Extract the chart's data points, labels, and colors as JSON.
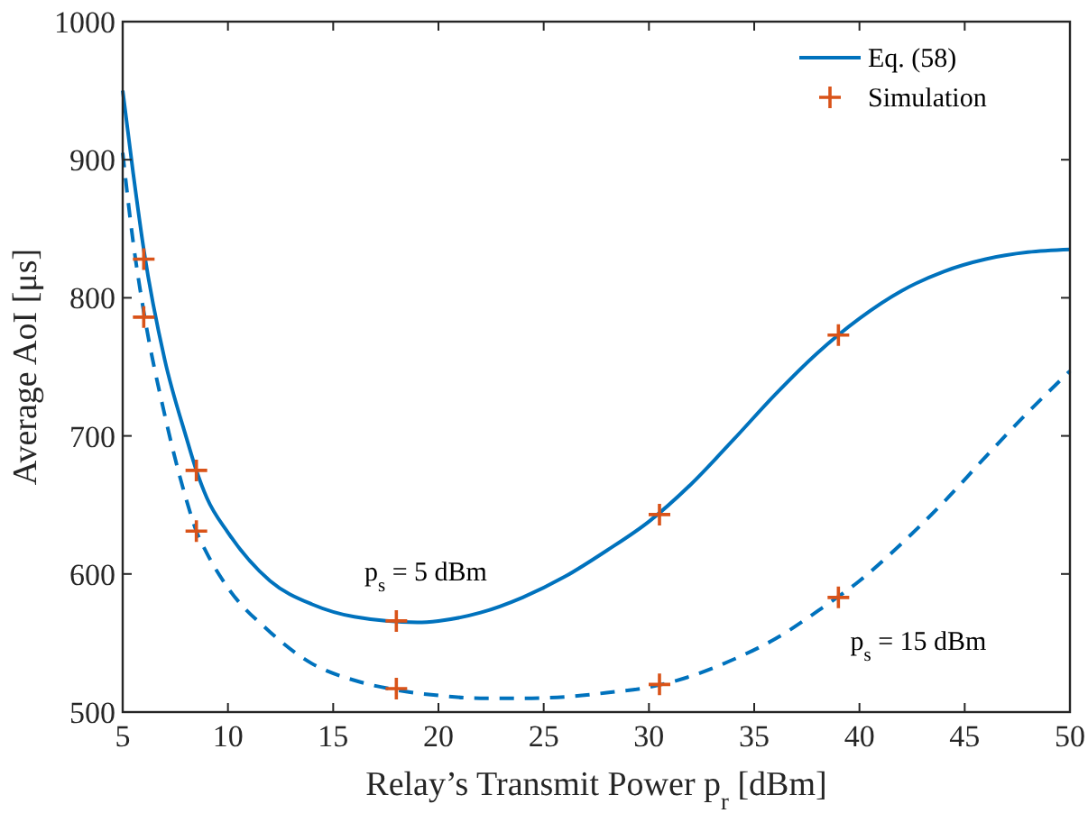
{
  "chart_data": {
    "type": "line",
    "xlabel": "Relay’s Transmit Power p$_{r}$ [dBm]",
    "ylabel": "Average AoI [μs]",
    "xlim": [
      5,
      50
    ],
    "ylim": [
      500,
      1000
    ],
    "xticks": [
      5,
      10,
      15,
      20,
      25,
      30,
      35,
      40,
      45,
      50
    ],
    "yticks": [
      500,
      600,
      700,
      800,
      900,
      1000
    ],
    "grid": false,
    "legend": "top right",
    "series": [
      {
        "name": "Eq. (58)",
        "line_style": "solid",
        "color": "#0072bd",
        "x": [
          5,
          5.5,
          6,
          7,
          8,
          8.5,
          9,
          10,
          12,
          14,
          16,
          19,
          20,
          22,
          24,
          26,
          28,
          30,
          32,
          34,
          36,
          38,
          40,
          42,
          44,
          46,
          48,
          50
        ],
        "values": [
          950,
          890,
          835,
          755,
          700,
          675,
          655,
          630,
          595,
          578,
          569,
          565,
          566,
          572,
          583,
          598,
          617,
          638,
          665,
          697,
          730,
          760,
          785,
          805,
          819,
          828,
          833,
          835
        ]
      },
      {
        "line_style": "dashed",
        "color": "#0072bd",
        "x": [
          5,
          5.5,
          6,
          7,
          8,
          8.5,
          9,
          10,
          12,
          14,
          16,
          18,
          20,
          22,
          24,
          26,
          28,
          30,
          32,
          34,
          36,
          38,
          40,
          42,
          44,
          46,
          48,
          50
        ],
        "values": [
          905,
          840,
          790,
          715,
          655,
          631,
          615,
          590,
          558,
          535,
          523,
          516,
          512,
          510,
          510,
          511,
          514,
          518,
          526,
          538,
          553,
          573,
          595,
          622,
          652,
          685,
          717,
          747
        ]
      },
      {
        "name": "Simulation",
        "type": "scatter",
        "marker": "cross",
        "color": "#d95319",
        "x": [
          6,
          6,
          8.5,
          8.5,
          18,
          18,
          30.5,
          30.5,
          39,
          39
        ],
        "values": [
          828,
          786,
          675,
          631,
          566,
          517,
          643,
          520,
          773,
          583
        ]
      }
    ],
    "annotations": [
      "p$_{s}$ = 5 dBm",
      "p$_{s}$ = 15 dBm"
    ]
  }
}
